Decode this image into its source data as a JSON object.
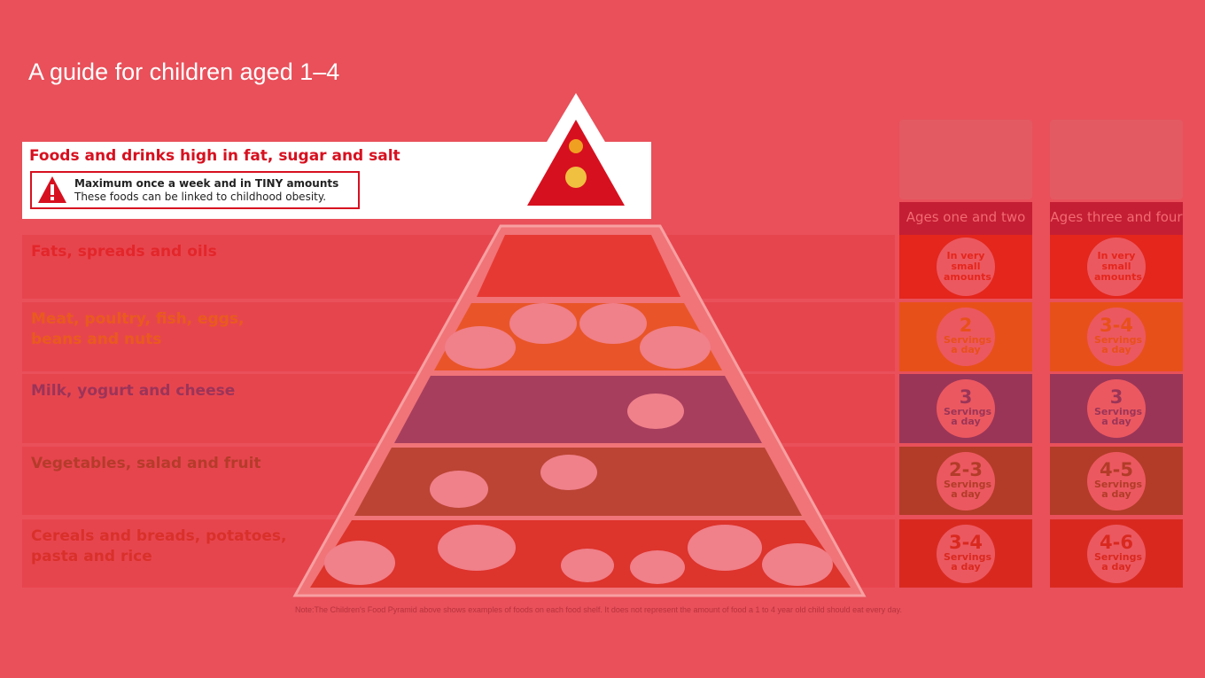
{
  "title": "A guide for children aged 1–4",
  "top_shelf": {
    "heading": "Foods and drinks high in fat, sugar and salt",
    "warning_bold": "Maximum once a week and in TINY amounts",
    "warning_text": "These foods can be linked to childhood obesity.",
    "icon": "warning-triangle-icon"
  },
  "columns": [
    "Ages one and two",
    "Ages three and four"
  ],
  "shelves": [
    {
      "label": "Fats, spreads and oils",
      "color": "#e4261c",
      "text_color": "#e3262a",
      "ages_1_2": {
        "number": "",
        "text": "In very small amounts"
      },
      "ages_3_4": {
        "number": "",
        "text": "In very small amounts"
      }
    },
    {
      "label": "Meat, poultry, fish, eggs, beans and nuts",
      "color": "#e8501a",
      "text_color": "#ea5a1e",
      "ages_1_2": {
        "number": "2",
        "text": "Servings a day"
      },
      "ages_3_4": {
        "number": "3-4",
        "text": "Servings a day"
      }
    },
    {
      "label": "Milk, yogurt and cheese",
      "color": "#9a3558",
      "text_color": "#9b3459",
      "ages_1_2": {
        "number": "3",
        "text": "Servings a day"
      },
      "ages_3_4": {
        "number": "3",
        "text": "Servings a day"
      }
    },
    {
      "label": "Vegetables, salad and fruit",
      "color": "#b23c28",
      "text_color": "#b53b2a",
      "ages_1_2": {
        "number": "2-3",
        "text": "Servings a day"
      },
      "ages_3_4": {
        "number": "4-5",
        "text": "Servings a day"
      }
    },
    {
      "label": "Cereals and breads, potatoes, pasta and rice",
      "color": "#d9291f",
      "text_color": "#d9302a",
      "ages_1_2": {
        "number": "3-4",
        "text": "Servings a day"
      },
      "ages_3_4": {
        "number": "4-6",
        "text": "Servings a day"
      }
    }
  ],
  "note": "Note:The Children's Food Pyramid above shows examples of foods on each food shelf. It does not represent the amount of food a 1 to 4 year old child should eat every day."
}
